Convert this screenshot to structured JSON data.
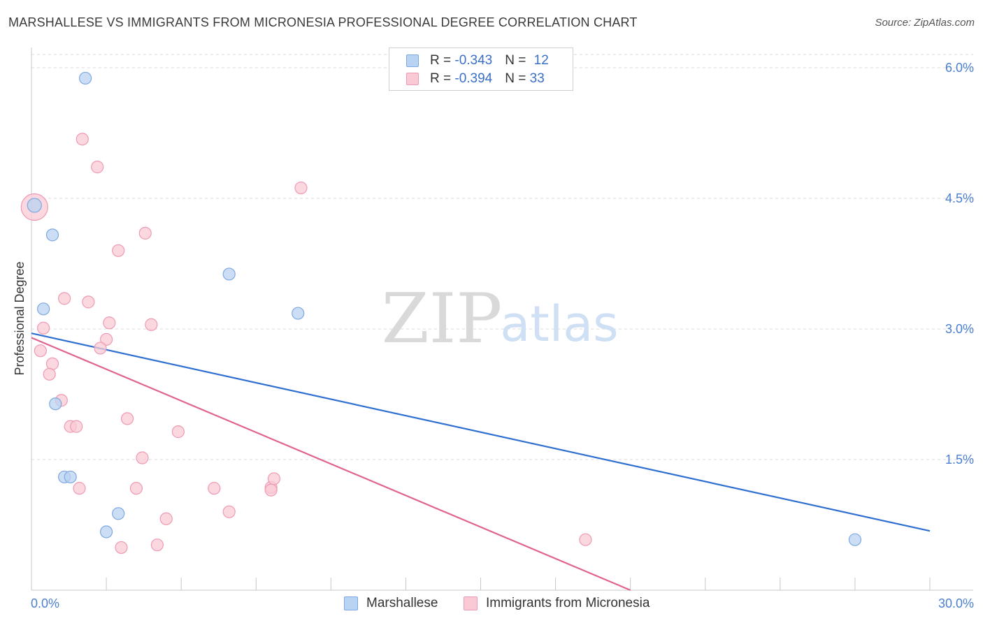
{
  "title": "MARSHALLESE VS IMMIGRANTS FROM MICRONESIA PROFESSIONAL DEGREE CORRELATION CHART",
  "source": "Source: ZipAtlas.com",
  "watermark": {
    "zip": "ZIP",
    "atlas": "atlas"
  },
  "colors": {
    "blue_fill": "#b9d3f2",
    "blue_stroke": "#7ea8e0",
    "blue_line": "#2e6fd1",
    "pink_fill": "#f9c9d6",
    "pink_stroke": "#ee9ab2",
    "pink_line": "#e0648e",
    "grid": "#d9d9d9",
    "tick_text": "#4a7fd0"
  },
  "legend": {
    "row1": {
      "r_label": "R = ",
      "r_value": "-0.343",
      "n_label": "N = ",
      "n_value": "12"
    },
    "row2": {
      "r_label": "R = ",
      "r_value": "-0.394",
      "n_label": "N = ",
      "n_value": "33"
    }
  },
  "bottom_legend": {
    "series1": "Marshallese",
    "series2": "Immigrants from Micronesia"
  },
  "chart_data": {
    "type": "scatter",
    "title": "MARSHALLESE VS IMMIGRANTS FROM MICRONESIA PROFESSIONAL DEGREE CORRELATION CHART",
    "xlabel": "",
    "ylabel": "Professional Degree",
    "xlim": [
      0,
      30
    ],
    "ylim": [
      0,
      6.2
    ],
    "x_tick_labels": [
      "0.0%",
      "30.0%"
    ],
    "y_ticks": [
      1.5,
      3.0,
      4.5,
      6.0
    ],
    "y_tick_labels": [
      "1.5%",
      "3.0%",
      "4.5%",
      "6.0%"
    ],
    "series": [
      {
        "name": "Marshallese",
        "color": "blue",
        "r": -0.343,
        "n": 12,
        "points": [
          [
            0.1,
            4.42
          ],
          [
            1.8,
            5.88
          ],
          [
            0.7,
            4.08
          ],
          [
            0.4,
            3.23
          ],
          [
            6.6,
            3.63
          ],
          [
            8.9,
            3.18
          ],
          [
            0.8,
            2.14
          ],
          [
            1.1,
            1.3
          ],
          [
            1.3,
            1.3
          ],
          [
            2.9,
            0.88
          ],
          [
            2.5,
            0.67
          ],
          [
            27.5,
            0.58
          ]
        ],
        "trend": {
          "x": [
            0,
            30
          ],
          "y": [
            2.95,
            0.68
          ]
        }
      },
      {
        "name": "Immigrants from Micronesia",
        "color": "pink",
        "r": -0.394,
        "n": 33,
        "points": [
          [
            0.1,
            4.4
          ],
          [
            1.7,
            5.18
          ],
          [
            2.2,
            4.86
          ],
          [
            9.0,
            4.62
          ],
          [
            3.8,
            4.1
          ],
          [
            2.9,
            3.9
          ],
          [
            1.1,
            3.35
          ],
          [
            1.9,
            3.31
          ],
          [
            2.6,
            3.07
          ],
          [
            4.0,
            3.05
          ],
          [
            0.4,
            3.01
          ],
          [
            2.5,
            2.88
          ],
          [
            2.3,
            2.78
          ],
          [
            0.3,
            2.75
          ],
          [
            0.7,
            2.6
          ],
          [
            0.6,
            2.48
          ],
          [
            1.0,
            2.18
          ],
          [
            3.2,
            1.97
          ],
          [
            1.3,
            1.88
          ],
          [
            1.5,
            1.88
          ],
          [
            4.9,
            1.82
          ],
          [
            3.7,
            1.52
          ],
          [
            1.6,
            1.17
          ],
          [
            3.5,
            1.17
          ],
          [
            6.1,
            1.17
          ],
          [
            8.0,
            1.18
          ],
          [
            8.1,
            1.28
          ],
          [
            8.0,
            1.15
          ],
          [
            6.6,
            0.9
          ],
          [
            4.5,
            0.82
          ],
          [
            4.2,
            0.52
          ],
          [
            3.0,
            0.49
          ],
          [
            18.5,
            0.58
          ]
        ],
        "trend": {
          "x": [
            0,
            20.0
          ],
          "y": [
            2.9,
            0.0
          ]
        }
      }
    ]
  }
}
